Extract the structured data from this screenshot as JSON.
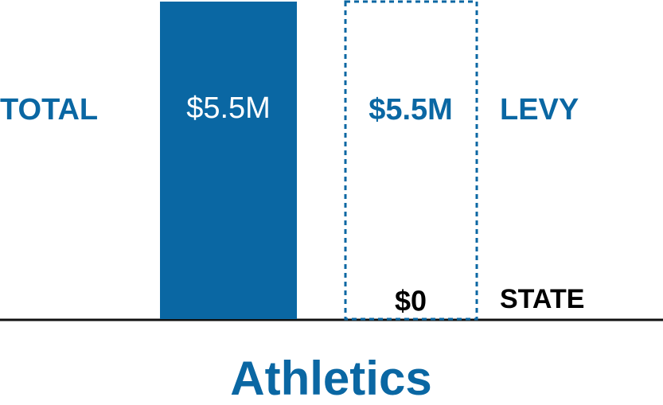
{
  "chart_data": {
    "type": "bar",
    "categories": [
      "Athletics"
    ],
    "series": [
      {
        "name": "TOTAL",
        "color": "#0a67a3",
        "values": [
          5500000
        ],
        "value_labels": [
          "$5.5M"
        ]
      },
      {
        "name": "STATE",
        "color": "#000000",
        "values": [
          0
        ],
        "value_labels": [
          "$0"
        ]
      },
      {
        "name": "LEVY",
        "color": "#0a67a3",
        "values": [
          5500000
        ],
        "value_labels": [
          "$5.5M"
        ]
      }
    ],
    "ylim": [
      0,
      5500000
    ]
  }
}
